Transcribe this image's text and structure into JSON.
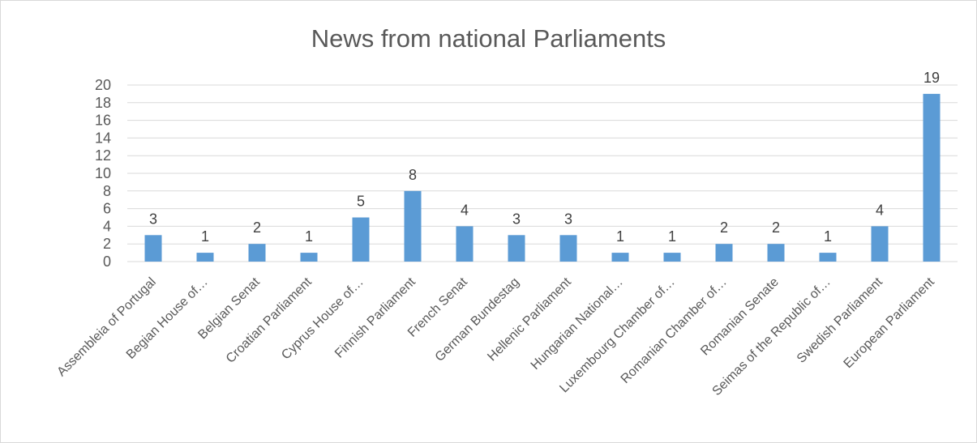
{
  "chart_data": {
    "type": "bar",
    "title": "News from national Parliaments",
    "categories": [
      "Assembleia of Portugal",
      "Begian House of…",
      "Belgian Senat",
      "Croatian Parliament",
      "Cyprus House of…",
      "Finnish Parliament",
      "French Senat",
      "German Bundestag",
      "Hellenic Parliament",
      "Hungarian National…",
      "Luxembourg Chamber of…",
      "Romanian Chamber of…",
      "Romanian Senate",
      "Seimas of the Republic of…",
      "Swedish Parliament",
      "European Parliament"
    ],
    "values": [
      3,
      1,
      2,
      1,
      5,
      8,
      4,
      3,
      3,
      1,
      1,
      2,
      2,
      1,
      4,
      19
    ],
    "ylim": [
      0,
      20
    ],
    "yticks": [
      "0",
      "2",
      "4",
      "6",
      "8",
      "10",
      "12",
      "14",
      "16",
      "18",
      "20"
    ],
    "xlabel": "",
    "ylabel": "",
    "grid": true,
    "legend": "none",
    "bar_color": "#5b9bd5"
  }
}
